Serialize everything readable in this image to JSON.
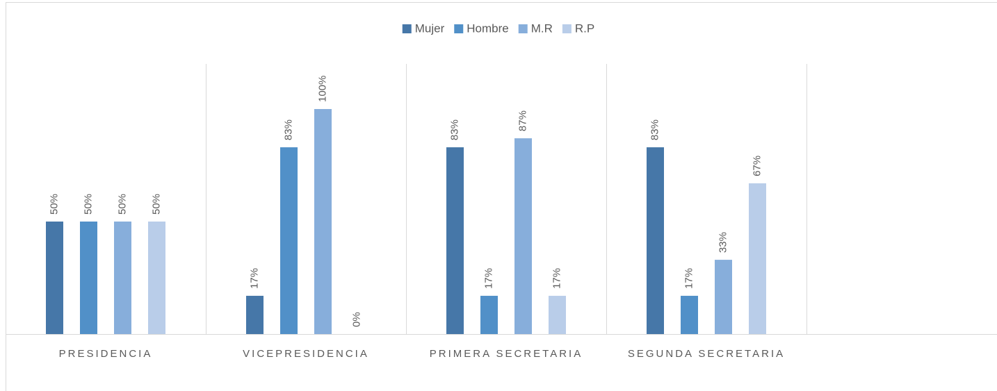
{
  "chart_data": {
    "type": "bar",
    "categories": [
      "PRESIDENCIA",
      "VICEPRESIDENCIA",
      "PRIMERA SECRETARIA",
      "SEGUNDA SECRETARIA"
    ],
    "series": [
      {
        "name": "Mujer",
        "color": "#4677a8",
        "values": [
          50,
          17,
          83,
          83
        ],
        "value_labels": [
          "50%",
          "17%",
          "83%",
          "83%"
        ]
      },
      {
        "name": "Hombre",
        "color": "#5190c8",
        "values": [
          50,
          83,
          17,
          17
        ],
        "value_labels": [
          "50%",
          "83%",
          "17%",
          "17%"
        ]
      },
      {
        "name": "M.R",
        "color": "#87aedb",
        "values": [
          50,
          100,
          87,
          33
        ],
        "value_labels": [
          "50%",
          "100%",
          "87%",
          "33%"
        ]
      },
      {
        "name": "R.P",
        "color": "#b9cde9",
        "values": [
          50,
          0,
          17,
          67
        ],
        "value_labels": [
          "50%",
          "0%",
          "17%",
          "67%"
        ]
      }
    ],
    "ylim": [
      0,
      100
    ],
    "legend": "top"
  }
}
